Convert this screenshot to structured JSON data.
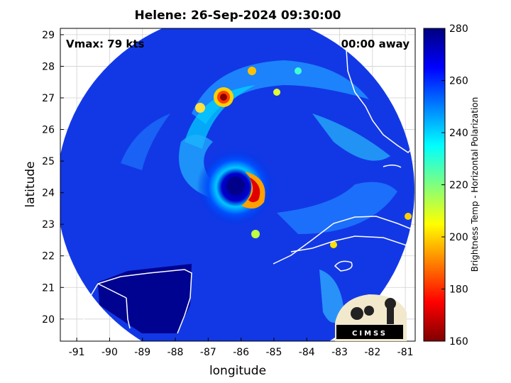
{
  "title": "Helene: 26-Sep-2024 09:30:00",
  "overlay": {
    "vmax": "Vmax: 79 kts",
    "away": "00:00 away"
  },
  "map": {
    "xlabel": "longitude",
    "ylabel": "latitude",
    "xlim": [
      -91.5,
      -80.7
    ],
    "ylim": [
      19.3,
      29.2
    ],
    "xticks": [
      -91,
      -90,
      -89,
      -88,
      -87,
      -86,
      -85,
      -84,
      -83,
      -82,
      -81
    ],
    "yticks": [
      20,
      21,
      22,
      23,
      24,
      25,
      26,
      27,
      28,
      29
    ],
    "storm_center": {
      "lon": -86.1,
      "lat": 24.2
    },
    "grid": true
  },
  "colorbar": {
    "label": "Brightness Temp - Horizontal Polarization",
    "ticks": [
      160,
      180,
      200,
      220,
      240,
      260,
      280
    ],
    "range": [
      160,
      280
    ]
  },
  "logo": {
    "text": "CIMSS"
  },
  "colors": {
    "cold": "#7f0000",
    "warm": "#00007f",
    "background": "#00008b"
  }
}
